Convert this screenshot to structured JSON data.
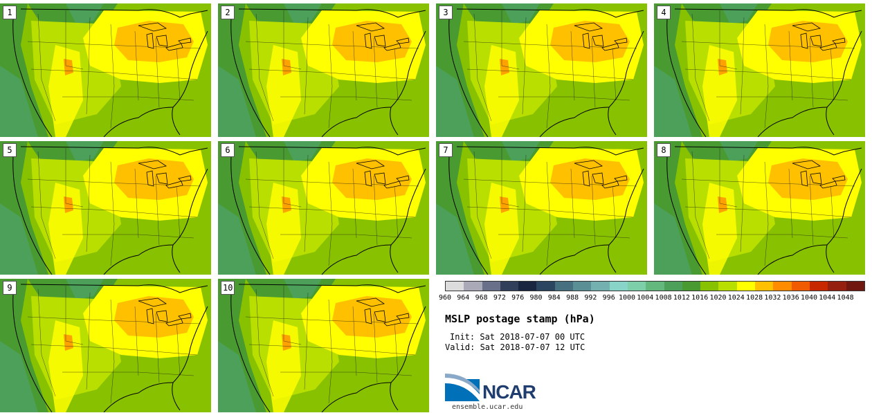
{
  "panels": [
    {
      "label": "1"
    },
    {
      "label": "2"
    },
    {
      "label": "3"
    },
    {
      "label": "4"
    },
    {
      "label": "5"
    },
    {
      "label": "6"
    },
    {
      "label": "7"
    },
    {
      "label": "8"
    },
    {
      "label": "9"
    },
    {
      "label": "10"
    }
  ],
  "colorbar": {
    "colors": [
      "#dcdcdc",
      "#a9a9b8",
      "#68708a",
      "#323f5a",
      "#1a2640",
      "#2b4560",
      "#467080",
      "#5a8f96",
      "#75b0b0",
      "#88d4c8",
      "#7ccfa8",
      "#64b87e",
      "#4da059",
      "#4a9a32",
      "#88c100",
      "#b9df00",
      "#ffff00",
      "#ffc000",
      "#ff8c00",
      "#f05a00",
      "#c82800",
      "#962010",
      "#701810"
    ],
    "ticks": [
      "960",
      "964",
      "968",
      "972",
      "976",
      "980",
      "984",
      "988",
      "992",
      "996",
      "1000",
      "1004",
      "1008",
      "1012",
      "1016",
      "1020",
      "1024",
      "1028",
      "1032",
      "1036",
      "1040",
      "1044",
      "1048"
    ]
  },
  "info": {
    "title": "MSLP postage stamp (hPa)",
    "init": "Init: Sat 2018-07-07 00 UTC",
    "valid": "Valid: Sat 2018-07-07 12 UTC"
  },
  "logo": {
    "text": "NCAR",
    "url": "ensemble.ucar.edu"
  }
}
